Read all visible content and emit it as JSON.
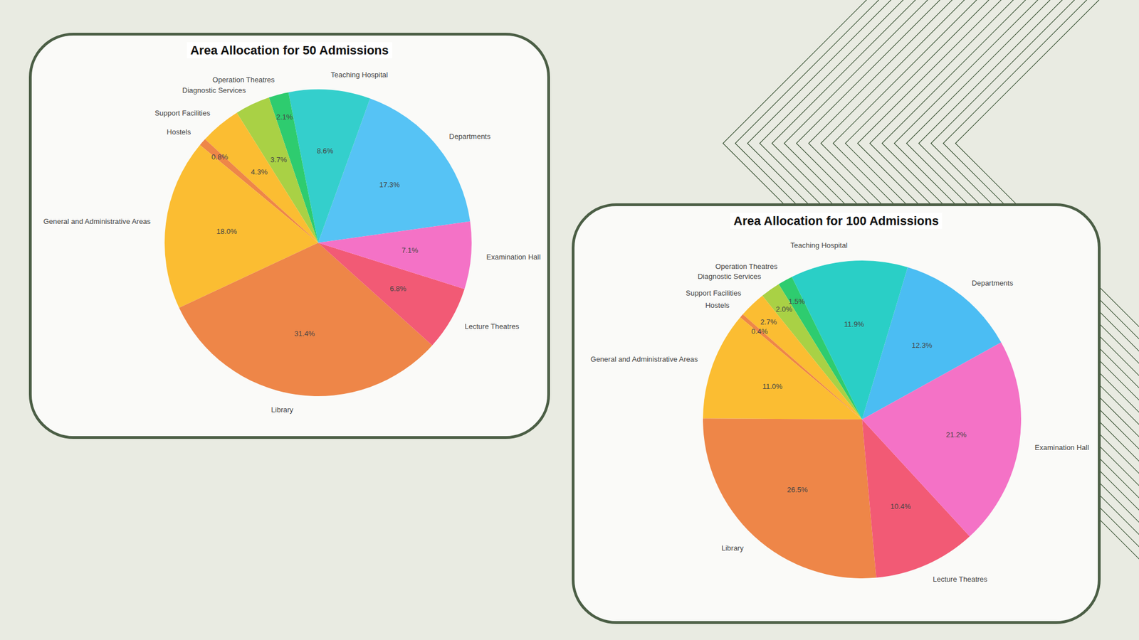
{
  "chart_data": [
    {
      "type": "pie",
      "title": "Area Allocation for 50 Admissions",
      "categories": [
        "Departments",
        "Teaching Hospital",
        "Operation Theatres",
        "Diagnostic Services",
        "Support Facilities",
        "Hostels",
        "General and Administrative Areas",
        "Library",
        "Lecture Theatres",
        "Examination Hall"
      ],
      "values": [
        17.3,
        8.6,
        2.1,
        3.7,
        4.3,
        0.8,
        18.0,
        31.4,
        6.8,
        7.1
      ],
      "value_labels": [
        "17.3%",
        "8.6%",
        "2.1%",
        "3.7%",
        "4.3%",
        "0.8%",
        "18.0%",
        "31.4%",
        "6.8%",
        "7.1%"
      ],
      "colors": [
        "#56c3f5",
        "#34cfcc",
        "#2ecc6f",
        "#a9d145",
        "#fbbd32",
        "#ee8648",
        "#fbbd32",
        "#ee8648",
        "#f25a75",
        "#f472c6"
      ],
      "data_labels": true
    },
    {
      "type": "pie",
      "title": "Area Allocation for 100 Admissions",
      "categories": [
        "Departments",
        "Teaching Hospital",
        "Operation Theatres",
        "Diagnostic Services",
        "Support Facilities",
        "Hostels",
        "General and Administrative Areas",
        "Library",
        "Lecture Theatres",
        "Examination Hall"
      ],
      "values": [
        12.3,
        11.9,
        1.5,
        2.0,
        2.7,
        0.4,
        11.0,
        26.5,
        10.4,
        21.2
      ],
      "value_labels": [
        "12.3%",
        "11.9%",
        "1.5%",
        "2.0%",
        "2.7%",
        "0.4%",
        "11.0%",
        "26.5%",
        "10.4%",
        "21.2%"
      ],
      "colors": [
        "#4bbdf3",
        "#2acfc6",
        "#2ecc6f",
        "#a9d145",
        "#fbbd32",
        "#ee8648",
        "#fbbd32",
        "#ee8648",
        "#f25a75",
        "#f472c6"
      ],
      "data_labels": true
    }
  ]
}
